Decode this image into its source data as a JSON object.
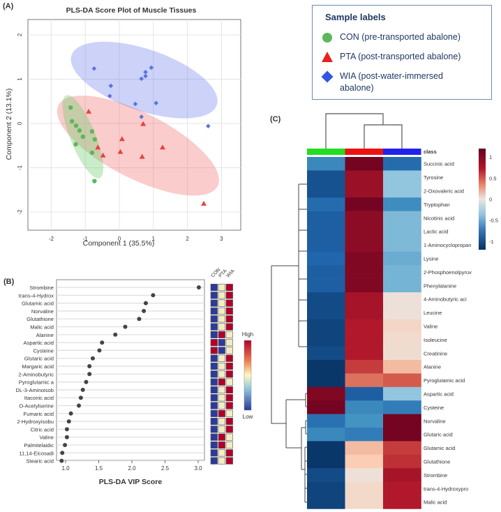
{
  "legend": {
    "title": "Sample labels",
    "items": [
      {
        "label": "CON (pre-transported abalone)",
        "color": "#5cb85c",
        "shape": "circle"
      },
      {
        "label": "PTA (post-transported abalone)",
        "color": "#e8221a",
        "shape": "triangle"
      },
      {
        "label": "WIA (post-water-immersed abalone)",
        "color": "#3357e0",
        "shape": "diamond"
      }
    ]
  },
  "chart_data": [
    {
      "panel": "(A)",
      "type": "scatter",
      "title": "PLS-DA Score Plot of Muscle Tissues",
      "xlabel": "Component 1 (35.5%)",
      "ylabel": "Component 2 (13.1%)",
      "xlim": [
        -2.7,
        3.4
      ],
      "ylim": [
        -2.4,
        2.4
      ],
      "xticks": [
        "-2",
        "-1",
        "0",
        "1",
        "2",
        "3"
      ],
      "yticks": [
        "2",
        "1",
        "0",
        "-1",
        "-2"
      ],
      "grid": true,
      "series": [
        {
          "name": "CON",
          "color": "#5cb85c",
          "points": [
            [
              -1.43,
              0.36
            ],
            [
              -1.39,
              0.05
            ],
            [
              -1.27,
              -0.05
            ],
            [
              -1.17,
              -0.16
            ],
            [
              -1.07,
              -0.3
            ],
            [
              -1.28,
              -0.47
            ],
            [
              -0.8,
              -0.18
            ],
            [
              -0.72,
              -0.36
            ],
            [
              -0.8,
              -0.66
            ],
            [
              -0.73,
              -1.3
            ]
          ]
        },
        {
          "name": "PTA",
          "color": "#e8433a",
          "points": [
            [
              -0.9,
              0.27
            ],
            [
              0.7,
              -0.01
            ],
            [
              -0.63,
              -0.54
            ],
            [
              -0.48,
              -0.72
            ],
            [
              0.08,
              -0.35
            ],
            [
              0.03,
              -0.64
            ],
            [
              0.67,
              -0.75
            ],
            [
              1.27,
              -0.54
            ],
            [
              2.48,
              -1.81
            ]
          ]
        },
        {
          "name": "WIA",
          "color": "#5b72e6",
          "points": [
            [
              -0.74,
              1.24
            ],
            [
              -0.25,
              0.85
            ],
            [
              -0.28,
              0.62
            ],
            [
              0.47,
              0.44
            ],
            [
              0.65,
              1.01
            ],
            [
              0.77,
              1.16
            ],
            [
              0.77,
              1.07
            ],
            [
              0.94,
              1.26
            ],
            [
              1.08,
              0.46
            ],
            [
              0.65,
              0.15
            ],
            [
              2.61,
              -0.06
            ]
          ]
        }
      ]
    },
    {
      "panel": "(B)",
      "type": "scatter",
      "xlabel": "PLS-DA VIP Score",
      "xlim": [
        0.9,
        3.1
      ],
      "xticks": [
        "1.0",
        "1.5",
        "2.0",
        "2.5",
        "3.0"
      ],
      "groups": [
        "CON",
        "PTA",
        "WIA"
      ],
      "colorbar": {
        "high": "High",
        "low": "Low"
      },
      "features": [
        {
          "name": "Strombine",
          "vip": 3.01,
          "levels": [
            "L",
            "M",
            "H"
          ]
        },
        {
          "name": "trans-4-Hydrox",
          "vip": 2.32,
          "levels": [
            "L",
            "M",
            "H"
          ]
        },
        {
          "name": "Glutamic acid",
          "vip": 2.21,
          "levels": [
            "L",
            "M",
            "H"
          ]
        },
        {
          "name": "Norvaline",
          "vip": 2.18,
          "levels": [
            "L",
            "M",
            "H"
          ]
        },
        {
          "name": "Glutathione",
          "vip": 2.11,
          "levels": [
            "L",
            "M",
            "H"
          ]
        },
        {
          "name": "Malic acid",
          "vip": 1.9,
          "levels": [
            "L",
            "M",
            "H"
          ]
        },
        {
          "name": "Alanine",
          "vip": 1.75,
          "levels": [
            "L",
            "H",
            "M"
          ]
        },
        {
          "name": "Aspartic acid",
          "vip": 1.55,
          "levels": [
            "H",
            "L",
            "M"
          ]
        },
        {
          "name": "Cysteine",
          "vip": 1.51,
          "levels": [
            "H",
            "L",
            "M"
          ]
        },
        {
          "name": "Glutaric acid",
          "vip": 1.41,
          "levels": [
            "L",
            "M",
            "H"
          ]
        },
        {
          "name": "Margaric acid",
          "vip": 1.36,
          "levels": [
            "L",
            "M",
            "H"
          ]
        },
        {
          "name": "2-Aminobutyric",
          "vip": 1.36,
          "levels": [
            "L",
            "M",
            "H"
          ]
        },
        {
          "name": "Pyroglutamic a",
          "vip": 1.31,
          "levels": [
            "L",
            "H",
            "M"
          ]
        },
        {
          "name": "DL-3-Aminoisob",
          "vip": 1.26,
          "levels": [
            "L",
            "M",
            "H"
          ]
        },
        {
          "name": "Itaconic acid",
          "vip": 1.23,
          "levels": [
            "L",
            "M",
            "H"
          ]
        },
        {
          "name": "O-Acetylserine",
          "vip": 1.2,
          "levels": [
            "L",
            "M",
            "H"
          ]
        },
        {
          "name": "Fumaric acid",
          "vip": 1.08,
          "levels": [
            "L",
            "H",
            "M"
          ]
        },
        {
          "name": "2-Hydroxyisobu",
          "vip": 1.05,
          "levels": [
            "L",
            "M",
            "H"
          ]
        },
        {
          "name": "Citric acid",
          "vip": 1.02,
          "levels": [
            "L",
            "M",
            "H"
          ]
        },
        {
          "name": "Valine",
          "vip": 1.02,
          "levels": [
            "L",
            "H",
            "M"
          ]
        },
        {
          "name": "Palmitelaidic",
          "vip": 0.99,
          "levels": [
            "L",
            "H",
            "M"
          ]
        },
        {
          "name": "11,14-Eicosadi",
          "vip": 0.95,
          "levels": [
            "L",
            "M",
            "H"
          ]
        },
        {
          "name": "Stearic acid",
          "vip": 0.94,
          "levels": [
            "L",
            "M",
            "H"
          ]
        }
      ]
    },
    {
      "panel": "(C)",
      "type": "heatmap",
      "class_label": "class",
      "columns": [
        "CON",
        "PTA",
        "WIA"
      ],
      "column_colors": [
        "#22dd22",
        "#ee1111",
        "#2222ee"
      ],
      "colorbar_ticks": [
        "1",
        "0.5",
        "0",
        "-0.5",
        "-1"
      ],
      "range": [
        -1.2,
        1.2
      ],
      "rows": [
        {
          "name": "Succinic acid",
          "values": [
            -0.5,
            1.15,
            -0.75
          ]
        },
        {
          "name": "Tyrosine",
          "values": [
            -0.95,
            1.0,
            -0.2
          ]
        },
        {
          "name": "2-Oxovaleric acid",
          "values": [
            -0.95,
            1.0,
            -0.2
          ]
        },
        {
          "name": "Tryptophan",
          "values": [
            -0.75,
            1.15,
            -0.45
          ]
        },
        {
          "name": "Nicotinic acid",
          "values": [
            -0.85,
            1.05,
            -0.25
          ]
        },
        {
          "name": "Lactic acid",
          "values": [
            -0.85,
            1.05,
            -0.25
          ]
        },
        {
          "name": "1-Aminocyclopropan",
          "values": [
            -0.85,
            1.05,
            -0.25
          ]
        },
        {
          "name": "Lysine",
          "values": [
            -0.8,
            1.1,
            -0.3
          ]
        },
        {
          "name": "2-Phosphoenolpyruv",
          "values": [
            -0.85,
            1.1,
            -0.27
          ]
        },
        {
          "name": "Phenylalanine",
          "values": [
            -0.85,
            1.1,
            -0.27
          ]
        },
        {
          "name": "4-Aminobutyric aci",
          "values": [
            -1.0,
            0.95,
            0.05
          ]
        },
        {
          "name": "Leucine",
          "values": [
            -1.0,
            0.95,
            0.05
          ]
        },
        {
          "name": "Valine",
          "values": [
            -1.05,
            0.9,
            0.18
          ]
        },
        {
          "name": "Isoleucine",
          "values": [
            -1.05,
            0.9,
            0.12
          ]
        },
        {
          "name": "Creatinine",
          "values": [
            -1.0,
            0.9,
            0.1
          ]
        },
        {
          "name": "Alanine",
          "values": [
            -1.15,
            0.75,
            0.35
          ]
        },
        {
          "name": "Pyroglutamic acid",
          "values": [
            -1.15,
            0.55,
            0.62
          ]
        },
        {
          "name": "Aspartic acid",
          "values": [
            1.1,
            -0.85,
            -0.2
          ]
        },
        {
          "name": "Cysteine",
          "values": [
            1.15,
            -0.5,
            -0.6
          ]
        },
        {
          "name": "Norvaline",
          "values": [
            -0.7,
            -0.4,
            1.15
          ]
        },
        {
          "name": "Glutaric acid",
          "values": [
            -0.5,
            -0.6,
            1.15
          ]
        },
        {
          "name": "Glutamic acid",
          "values": [
            -1.15,
            0.35,
            0.75
          ]
        },
        {
          "name": "Glutathione",
          "values": [
            -1.15,
            0.3,
            0.8
          ]
        },
        {
          "name": "Strombine",
          "values": [
            -1.0,
            0.05,
            0.95
          ]
        },
        {
          "name": "trans-4-Hydroxypro",
          "values": [
            -1.05,
            0.15,
            0.9
          ]
        },
        {
          "name": "Malic acid",
          "values": [
            -1.05,
            0.15,
            0.9
          ]
        }
      ]
    }
  ]
}
